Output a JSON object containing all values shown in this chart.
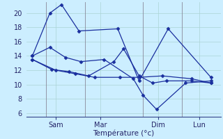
{
  "background_color": "#cceeff",
  "plot_bg": "#cceeff",
  "line_color": "#1a2f9e",
  "grid_color": "#aad4d4",
  "xlabel": "Température (°c)",
  "ylim": [
    5.5,
    21.5
  ],
  "yticks": [
    6,
    8,
    10,
    12,
    14,
    16,
    18,
    20
  ],
  "day_labels": [
    "Sam",
    "Mar",
    "Dim",
    "Lun"
  ],
  "vline_x": [
    1.0,
    3.0,
    6.0,
    8.0
  ],
  "xlim": [
    0,
    10.0
  ],
  "figsize": [
    3.2,
    2.0
  ],
  "dpi": 100,
  "series": [
    {
      "x": [
        0.3,
        1.2,
        1.8,
        2.7,
        4.7,
        5.8,
        7.3,
        9.5
      ],
      "y": [
        14.0,
        20.0,
        21.2,
        17.5,
        17.8,
        10.5,
        17.8,
        11.0
      ]
    },
    {
      "x": [
        0.3,
        1.2,
        2.0,
        2.8,
        4.0,
        5.5,
        6.0,
        6.7,
        8.2,
        9.5
      ],
      "y": [
        14.0,
        15.2,
        13.8,
        13.2,
        13.5,
        10.8,
        8.5,
        6.5,
        10.2,
        10.5
      ]
    },
    {
      "x": [
        0.3,
        1.3,
        2.2,
        3.2,
        4.5,
        5.0,
        5.8,
        6.5,
        7.2,
        8.5,
        9.5
      ],
      "y": [
        13.5,
        12.1,
        11.8,
        11.2,
        13.2,
        15.0,
        11.2,
        10.2,
        10.5,
        10.5,
        10.2
      ]
    },
    {
      "x": [
        0.3,
        1.5,
        2.5,
        3.5,
        4.8,
        5.8,
        7.0,
        8.5,
        9.5
      ],
      "y": [
        13.5,
        12.0,
        11.5,
        11.0,
        11.0,
        11.0,
        11.2,
        10.8,
        10.2
      ]
    }
  ]
}
